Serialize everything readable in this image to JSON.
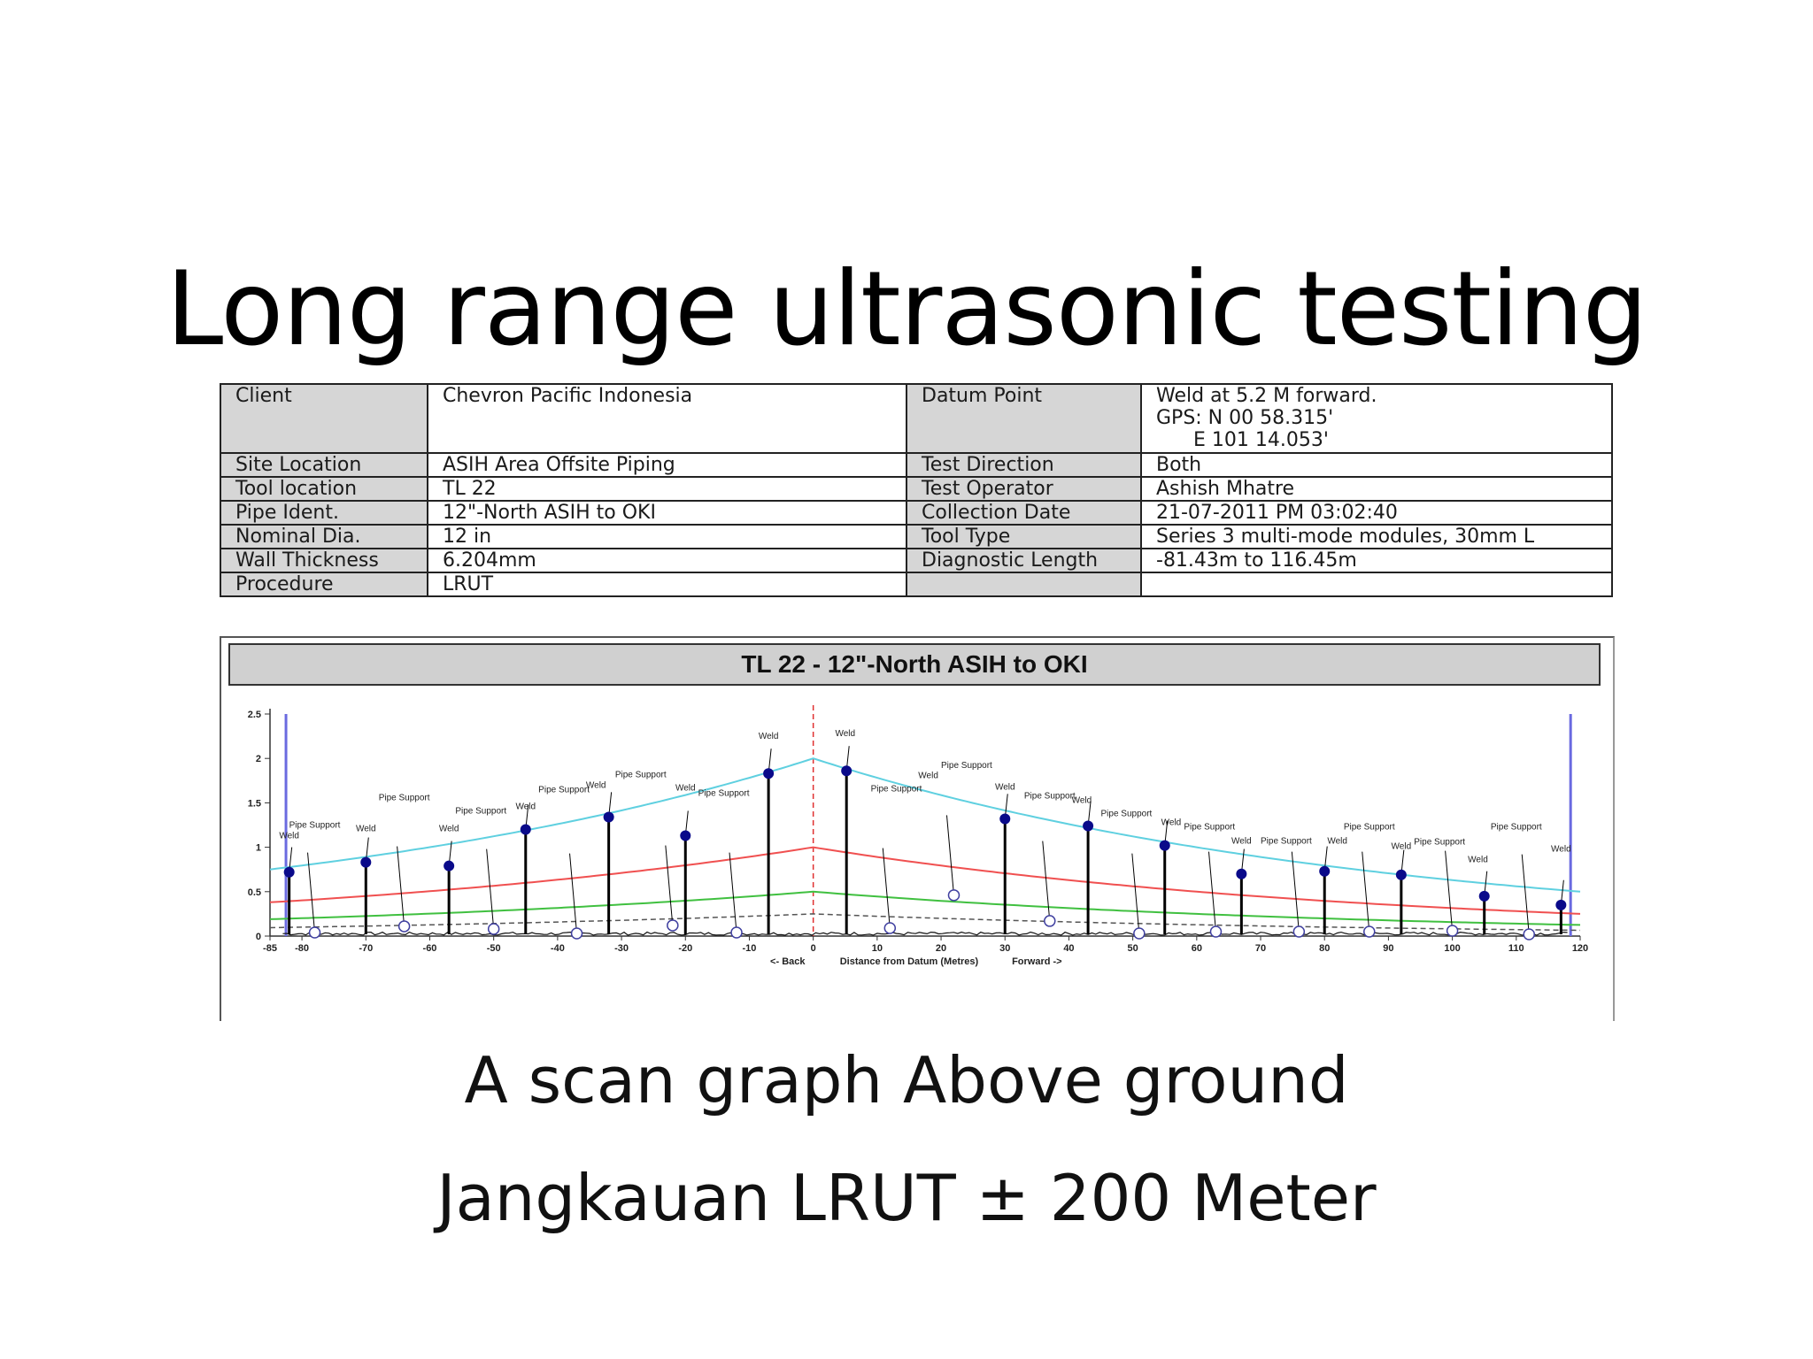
{
  "slide": {
    "title": "Long range ultrasonic testing",
    "caption_1": "A scan graph Above ground",
    "caption_2": "Jangkauan LRUT ± 200 Meter"
  },
  "info_table": {
    "client_label": "Client",
    "client_value": "Chevron Pacific Indonesia",
    "datum_label": "Datum Point",
    "datum_value": "Weld at 5.2 M forward.\nGPS: N 00 58.315'\n      E 101 14.053'",
    "site_label": "Site Location",
    "site_value": "ASIH Area Offsite Piping",
    "direction_label": "Test Direction",
    "direction_value": "Both",
    "tool_loc_label": "Tool location",
    "tool_loc_value": "TL 22",
    "operator_label": "Test Operator",
    "operator_value": "Ashish Mhatre",
    "pipe_label": "Pipe Ident.",
    "pipe_value": "12\"-North ASIH to OKI",
    "date_label": "Collection Date",
    "date_value": "21-07-2011 PM 03:02:40",
    "dia_label": "Nominal Dia.",
    "dia_value": "12 in",
    "tooltype_label": "Tool Type",
    "tooltype_value": "Series 3 multi-mode modules, 30mm L",
    "wall_label": "Wall Thickness",
    "wall_value": "6.204mm",
    "diaglen_label": "Diagnostic Length",
    "diaglen_value": "-81.43m to 116.45m",
    "proc_label": "Procedure",
    "proc_value": "LRUT"
  },
  "chart_data": {
    "type": "line",
    "title": "TL 22 - 12\"-North ASIH to OKI",
    "xlabel": "Distance from Datum (Metres)",
    "xlabel_left": "<- Back",
    "xlabel_right": "Forward ->",
    "ylabel": "",
    "xlim": [
      -85,
      120
    ],
    "ylim": [
      0,
      2.5
    ],
    "x_ticks": [
      -85,
      -80,
      -70,
      -60,
      -50,
      -40,
      -30,
      -20,
      -10,
      0,
      10,
      20,
      30,
      40,
      50,
      60,
      70,
      80,
      90,
      100,
      110,
      120
    ],
    "y_ticks": [
      0,
      0.5,
      1,
      1.5,
      2,
      2.5
    ],
    "y_tick_labels": [
      "0",
      "0.5",
      "1",
      "1.5",
      "2",
      "2.5"
    ],
    "datum_x": 0,
    "curves": [
      {
        "color": "#5fd0e0",
        "peak": 2.0,
        "left_end": 0.75,
        "right_end": 0.5
      },
      {
        "color": "#f05050",
        "peak": 1.0,
        "left_end": 0.38,
        "right_end": 0.25
      },
      {
        "color": "#40c040",
        "peak": 0.5,
        "left_end": 0.19,
        "right_end": 0.125
      },
      {
        "color": "#555555",
        "peak": 0.25,
        "left_end": 0.095,
        "right_end": 0.065,
        "dashed": true
      }
    ],
    "welds": [
      {
        "x": -82,
        "y": 0.72
      },
      {
        "x": -70,
        "y": 0.83
      },
      {
        "x": -57,
        "y": 0.79
      },
      {
        "x": -45,
        "y": 1.2
      },
      {
        "x": -32,
        "y": 1.34
      },
      {
        "x": -20,
        "y": 1.13
      },
      {
        "x": -7,
        "y": 1.83
      },
      {
        "x": 5.2,
        "y": 1.86
      },
      {
        "x": 30,
        "y": 1.32
      },
      {
        "x": 43,
        "y": 1.24
      },
      {
        "x": 55,
        "y": 1.02
      },
      {
        "x": 67,
        "y": 0.7
      },
      {
        "x": 80,
        "y": 0.73
      },
      {
        "x": 92,
        "y": 0.69
      },
      {
        "x": 105,
        "y": 0.45
      },
      {
        "x": 117,
        "y": 0.35
      }
    ],
    "supports": [
      {
        "x": -78,
        "y": 0.04
      },
      {
        "x": -64,
        "y": 0.11
      },
      {
        "x": -50,
        "y": 0.08
      },
      {
        "x": -37,
        "y": 0.03
      },
      {
        "x": -22,
        "y": 0.12
      },
      {
        "x": -12,
        "y": 0.04
      },
      {
        "x": 12,
        "y": 0.09
      },
      {
        "x": 22,
        "y": 0.46
      },
      {
        "x": 37,
        "y": 0.17
      },
      {
        "x": 51,
        "y": 0.03
      },
      {
        "x": 63,
        "y": 0.05
      },
      {
        "x": 76,
        "y": 0.05
      },
      {
        "x": 87,
        "y": 0.05
      },
      {
        "x": 100,
        "y": 0.06
      },
      {
        "x": 112,
        "y": 0.02
      }
    ],
    "annotations": [
      {
        "text": "Weld",
        "x": -82,
        "y": 1.1
      },
      {
        "text": "Pipe Support",
        "x": -78,
        "y": 1.22
      },
      {
        "text": "Weld",
        "x": -70,
        "y": 1.18
      },
      {
        "text": "Pipe Support",
        "x": -64,
        "y": 1.53
      },
      {
        "text": "Weld",
        "x": -57,
        "y": 1.18
      },
      {
        "text": "Pipe Support",
        "x": -52,
        "y": 1.38
      },
      {
        "text": "Weld",
        "x": -45,
        "y": 1.43
      },
      {
        "text": "Pipe Support",
        "x": -39,
        "y": 1.62
      },
      {
        "text": "Weld",
        "x": -34,
        "y": 1.67
      },
      {
        "text": "Pipe Support",
        "x": -27,
        "y": 1.79
      },
      {
        "text": "Weld",
        "x": -20,
        "y": 1.64
      },
      {
        "text": "Pipe Support",
        "x": -14,
        "y": 1.58
      },
      {
        "text": "Weld",
        "x": -7,
        "y": 2.22
      },
      {
        "text": "Weld",
        "x": 5,
        "y": 2.25
      },
      {
        "text": "Pipe Support",
        "x": 13,
        "y": 1.63
      },
      {
        "text": "Weld",
        "x": 18,
        "y": 1.78
      },
      {
        "text": "Pipe Support",
        "x": 24,
        "y": 1.89
      },
      {
        "text": "Weld",
        "x": 30,
        "y": 1.65
      },
      {
        "text": "Pipe Support",
        "x": 37,
        "y": 1.55
      },
      {
        "text": "Weld",
        "x": 42,
        "y": 1.5
      },
      {
        "text": "Pipe Support",
        "x": 49,
        "y": 1.35
      },
      {
        "text": "Weld",
        "x": 56,
        "y": 1.25
      },
      {
        "text": "Pipe Support",
        "x": 62,
        "y": 1.2
      },
      {
        "text": "Weld",
        "x": 67,
        "y": 1.04
      },
      {
        "text": "Pipe Support",
        "x": 74,
        "y": 1.04
      },
      {
        "text": "Weld",
        "x": 82,
        "y": 1.04
      },
      {
        "text": "Pipe Support",
        "x": 87,
        "y": 1.2
      },
      {
        "text": "Weld",
        "x": 92,
        "y": 0.98
      },
      {
        "text": "Pipe Support",
        "x": 98,
        "y": 1.03
      },
      {
        "text": "Weld",
        "x": 104,
        "y": 0.83
      },
      {
        "text": "Pipe Support",
        "x": 110,
        "y": 1.2
      },
      {
        "text": "Weld",
        "x": 117,
        "y": 0.95
      }
    ]
  }
}
